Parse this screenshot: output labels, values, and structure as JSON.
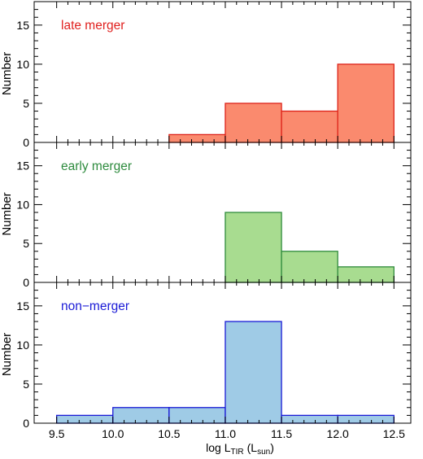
{
  "chart_data": [
    {
      "type": "bar",
      "label": "late merger",
      "label_color": "#e0201e",
      "fill": "#fa8a6e",
      "stroke": "#dd2219",
      "bins": [
        [
          9.5,
          10.0
        ],
        [
          10.0,
          10.5
        ],
        [
          10.5,
          11.0
        ],
        [
          11.0,
          11.5
        ],
        [
          11.5,
          12.0
        ],
        [
          12.0,
          12.5
        ]
      ],
      "values": [
        0,
        0,
        1,
        5,
        4,
        10
      ],
      "ylabel": "Number",
      "ylim": [
        0,
        18
      ],
      "yticks": [
        "0",
        "5",
        "10",
        "15"
      ]
    },
    {
      "type": "bar",
      "label": "early merger",
      "label_color": "#2e8b3e",
      "fill": "#a8dc90",
      "stroke": "#2f8b3c",
      "bins": [
        [
          9.5,
          10.0
        ],
        [
          10.0,
          10.5
        ],
        [
          10.5,
          11.0
        ],
        [
          11.0,
          11.5
        ],
        [
          11.5,
          12.0
        ],
        [
          12.0,
          12.5
        ]
      ],
      "values": [
        0,
        0,
        0,
        9,
        4,
        2
      ],
      "ylabel": "Number",
      "ylim": [
        0,
        18
      ],
      "yticks": [
        "0",
        "5",
        "10",
        "15"
      ]
    },
    {
      "type": "bar",
      "label": "non−merger",
      "label_color": "#1a1ad6",
      "fill": "#9fcbe6",
      "stroke": "#1a1ad6",
      "bins": [
        [
          9.5,
          10.0
        ],
        [
          10.0,
          10.5
        ],
        [
          10.5,
          11.0
        ],
        [
          11.0,
          11.5
        ],
        [
          11.5,
          12.0
        ],
        [
          12.0,
          12.5
        ]
      ],
      "values": [
        1,
        2,
        2,
        13,
        1,
        1
      ],
      "ylabel": "Number",
      "ylim": [
        0,
        18
      ],
      "yticks": [
        "0",
        "5",
        "10",
        "15"
      ]
    }
  ],
  "x_axis": {
    "xlim": [
      9.3,
      12.65
    ],
    "ticks": [
      9.5,
      10.0,
      10.5,
      11.0,
      11.5,
      12.0,
      12.5
    ],
    "tick_labels": [
      "9.5",
      "10.0",
      "10.5",
      "11.0",
      "11.5",
      "12.0",
      "12.5"
    ],
    "xlabel_main": "log L",
    "xlabel_sub": "TIR",
    "xlabel_paren_open": "(L",
    "xlabel_unit_sub": "sun",
    "xlabel_paren_close": ")"
  },
  "axis_color": "#000000"
}
